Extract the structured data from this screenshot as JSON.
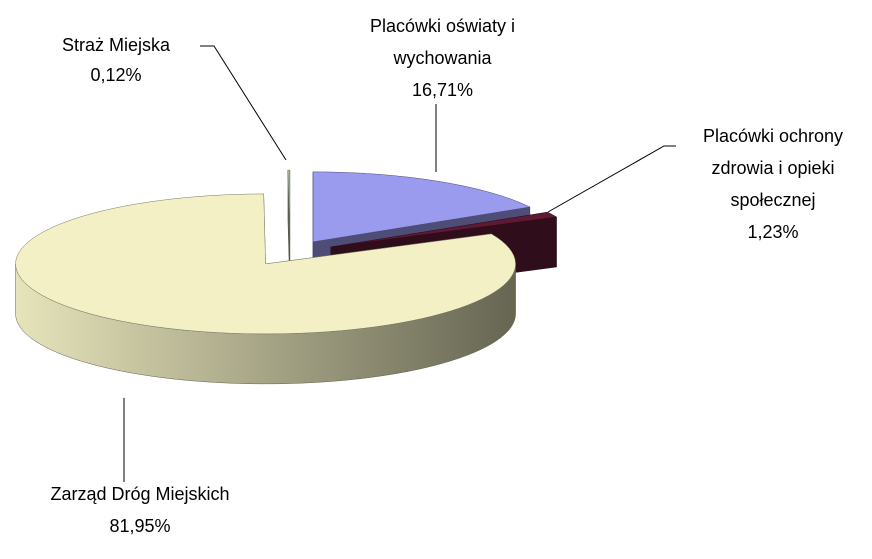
{
  "chart_data": {
    "type": "pie",
    "categories": [
      "Placówki oświaty i wychowania",
      "Placówki ochrony zdrowia i opieki społecznej",
      "Zarząd Dróg Miejskich",
      "Straż Miejska"
    ],
    "values": [
      16.71,
      1.23,
      81.95,
      0.12
    ],
    "value_labels": [
      "16,71%",
      "1,23%",
      "81,95%",
      "0,12%"
    ],
    "colors": [
      "#9a9aee",
      "#5e1a34",
      "#f2f0c4",
      "#b8c8a8"
    ]
  }
}
